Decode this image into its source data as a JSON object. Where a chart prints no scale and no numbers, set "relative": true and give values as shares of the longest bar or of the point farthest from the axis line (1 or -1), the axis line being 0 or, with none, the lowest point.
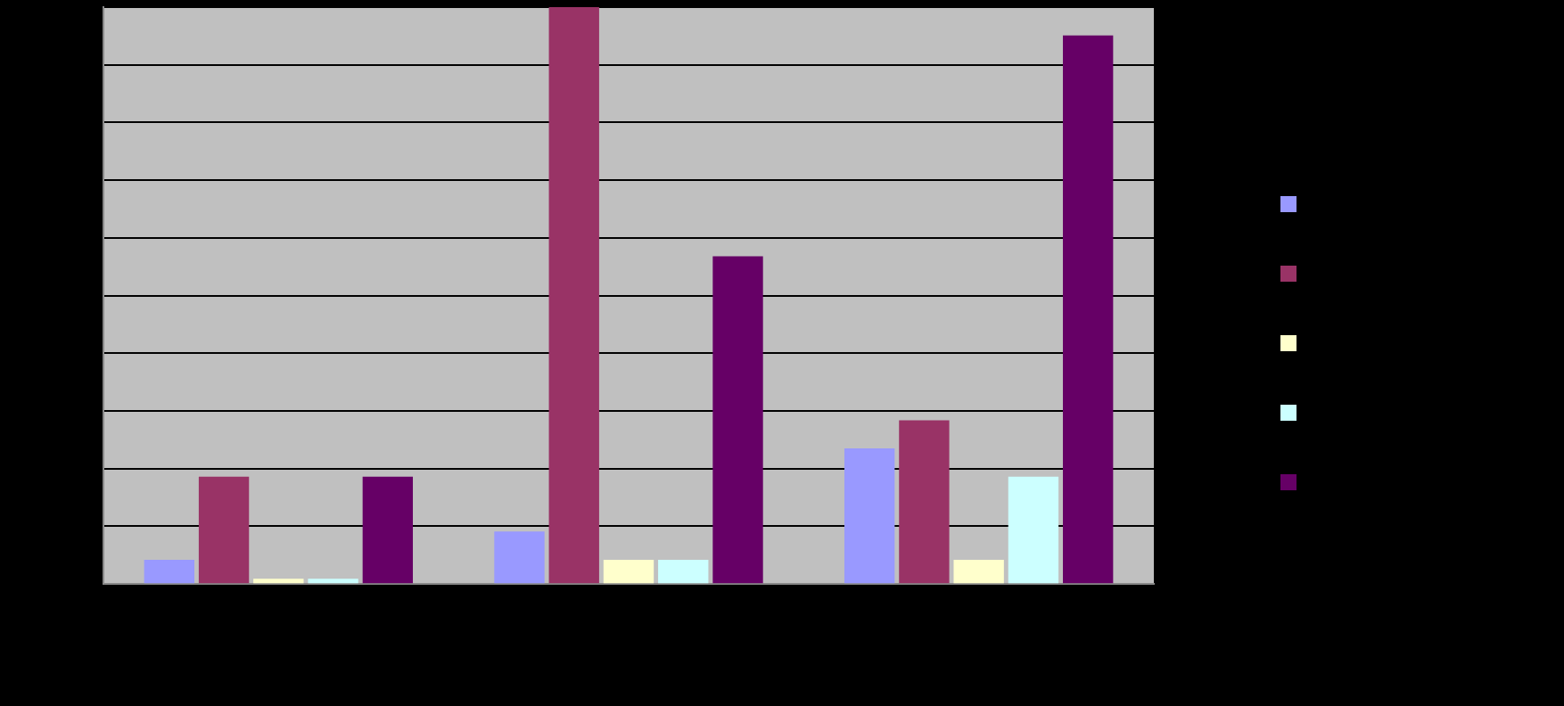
{
  "chart_data": {
    "type": "bar",
    "relative": true,
    "categories": [
      null,
      null,
      null
    ],
    "series": [
      {
        "color": "#9999ff",
        "values": [
          0.042,
          0.091,
          0.235
        ]
      },
      {
        "color": "#993366",
        "values": [
          0.186,
          1,
          0.284
        ]
      },
      {
        "color": "#ffffcc",
        "values": [
          0,
          0.042,
          0.042
        ]
      },
      {
        "color": "#ccffff",
        "values": [
          0,
          0.042,
          0.186
        ]
      },
      {
        "color": "#660066",
        "values": [
          0.186,
          0.568,
          0.951
        ]
      }
    ],
    "grid": "y"
  }
}
